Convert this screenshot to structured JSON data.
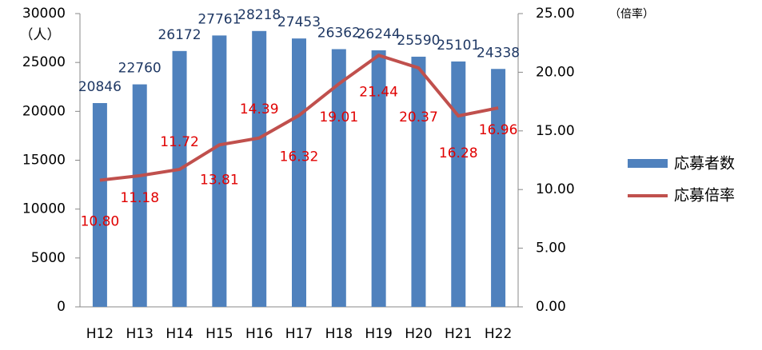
{
  "chart_data": {
    "type": "bar",
    "categories": [
      "H12",
      "H13",
      "H14",
      "H15",
      "H16",
      "H17",
      "H18",
      "H19",
      "H20",
      "H21",
      "H22"
    ],
    "series": [
      {
        "name": "応募者数",
        "type": "bar",
        "color": "#4f81bd",
        "values": [
          20846,
          22760,
          26172,
          27761,
          28218,
          27453,
          26362,
          26244,
          25590,
          25101,
          24338
        ]
      },
      {
        "name": "応募倍率",
        "type": "line",
        "axis": "y2",
        "color": "#c0504d",
        "values": [
          10.8,
          11.18,
          11.72,
          13.81,
          14.39,
          16.32,
          19.01,
          21.44,
          20.37,
          16.28,
          16.96
        ],
        "value_labels": [
          "10.80",
          "11.18",
          "11.72",
          "13.81",
          "14.39",
          "16.32",
          "19.01",
          "21.44",
          "20.37",
          "16.28",
          "16.96"
        ]
      }
    ],
    "ylabel": "（人）",
    "y2label": "（倍率）",
    "ylim": [
      0,
      30000
    ],
    "yticks": [
      0,
      5000,
      10000,
      15000,
      20000,
      25000,
      30000
    ],
    "y2lim": [
      0,
      25
    ],
    "y2ticks": [
      {
        "value": 0,
        "label": "0.00"
      },
      {
        "value": 5,
        "label": "5.00"
      },
      {
        "value": 10,
        "label": "10.00"
      },
      {
        "value": 15,
        "label": "15.00"
      },
      {
        "value": 20,
        "label": "20.00"
      },
      {
        "value": 25,
        "label": "25.00"
      }
    ],
    "legend": "right"
  }
}
